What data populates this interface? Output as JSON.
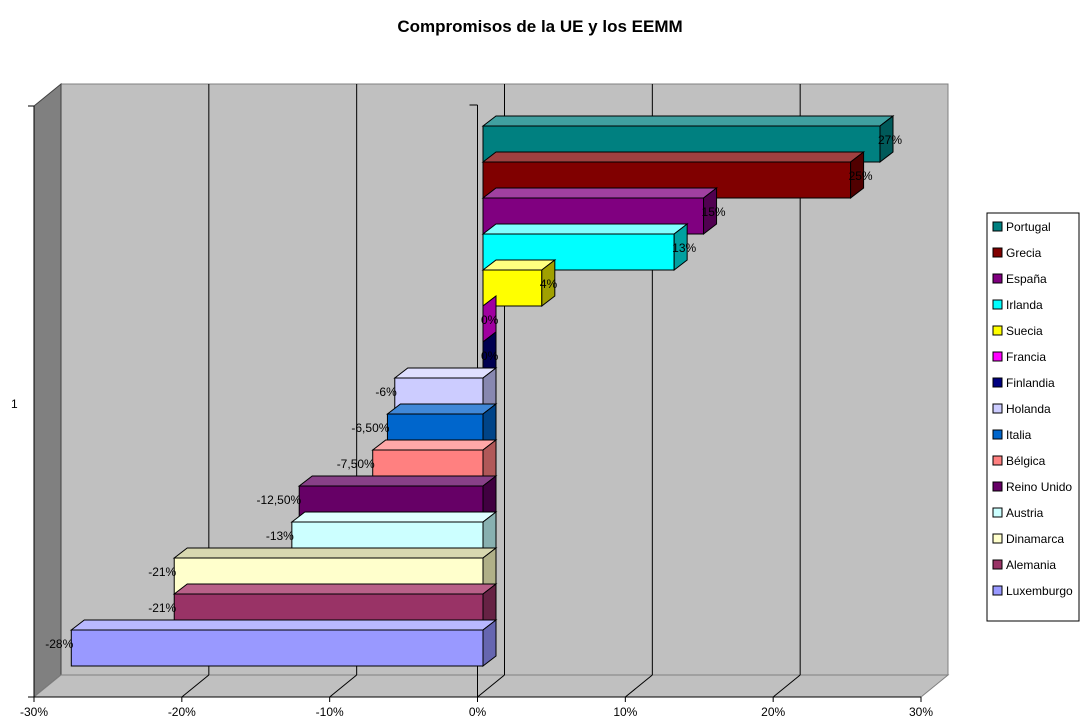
{
  "chart_data": {
    "type": "bar",
    "orientation": "horizontal",
    "title": "Compromisos de la UE y los EEMM",
    "xlabel": "",
    "ylabel": "",
    "category_label": "1",
    "xlim": [
      -0.3,
      0.3
    ],
    "x_ticks": [
      "-30%",
      "-20%",
      "-10%",
      "0%",
      "10%",
      "20%",
      "30%"
    ],
    "grid": true,
    "legend_position": "right",
    "series": [
      {
        "name": "Portugal",
        "value": 0.27,
        "label": "27%",
        "color": "#008080",
        "side": "#005a5a",
        "top": "#40a0a0"
      },
      {
        "name": "Grecia",
        "value": 0.25,
        "label": "25%",
        "color": "#800000",
        "side": "#500000",
        "top": "#a04040"
      },
      {
        "name": "España",
        "value": 0.15,
        "label": "15%",
        "color": "#800080",
        "side": "#500050",
        "top": "#a040a0"
      },
      {
        "name": "Irlanda",
        "value": 0.13,
        "label": "13%",
        "color": "#00ffff",
        "side": "#00a0a0",
        "top": "#80ffff"
      },
      {
        "name": "Suecia",
        "value": 0.04,
        "label": "4%",
        "color": "#ffff00",
        "side": "#a0a000",
        "top": "#ffff80"
      },
      {
        "name": "Francia",
        "value": 0.0,
        "label": "0%",
        "color": "#ff00ff",
        "side": "#a000a0",
        "top": "#ff80ff"
      },
      {
        "name": "Finlandia",
        "value": 0.0,
        "label": "0%",
        "color": "#000080",
        "side": "#000050",
        "top": "#4040a0"
      },
      {
        "name": "Holanda",
        "value": -0.06,
        "label": "-6%",
        "color": "#ccccff",
        "side": "#8888b0",
        "top": "#e0e0ff"
      },
      {
        "name": "Italia",
        "value": -0.065,
        "label": "-6,50%",
        "color": "#0066cc",
        "side": "#004488",
        "top": "#4088d8"
      },
      {
        "name": "Bélgica",
        "value": -0.075,
        "label": "-7,50%",
        "color": "#ff8080",
        "side": "#b05858",
        "top": "#ffa8a8"
      },
      {
        "name": "Reino Unido",
        "value": -0.125,
        "label": "-12,50%",
        "color": "#660066",
        "side": "#400040",
        "top": "#884088"
      },
      {
        "name": "Austria",
        "value": -0.13,
        "label": "-13%",
        "color": "#ccffff",
        "side": "#88b0b0",
        "top": "#e0ffff"
      },
      {
        "name": "Dinamarca",
        "value": -0.21,
        "label": "-21%",
        "color": "#ffffcc",
        "side": "#b0b088",
        "top": "#d8d8b0"
      },
      {
        "name": "Alemania",
        "value": -0.21,
        "label": "-21%",
        "color": "#993366",
        "side": "#662244",
        "top": "#b86088"
      },
      {
        "name": "Luxemburgo",
        "value": -0.28,
        "label": "-28%",
        "color": "#9999ff",
        "side": "#6666b0",
        "top": "#b8b8ff"
      }
    ]
  }
}
